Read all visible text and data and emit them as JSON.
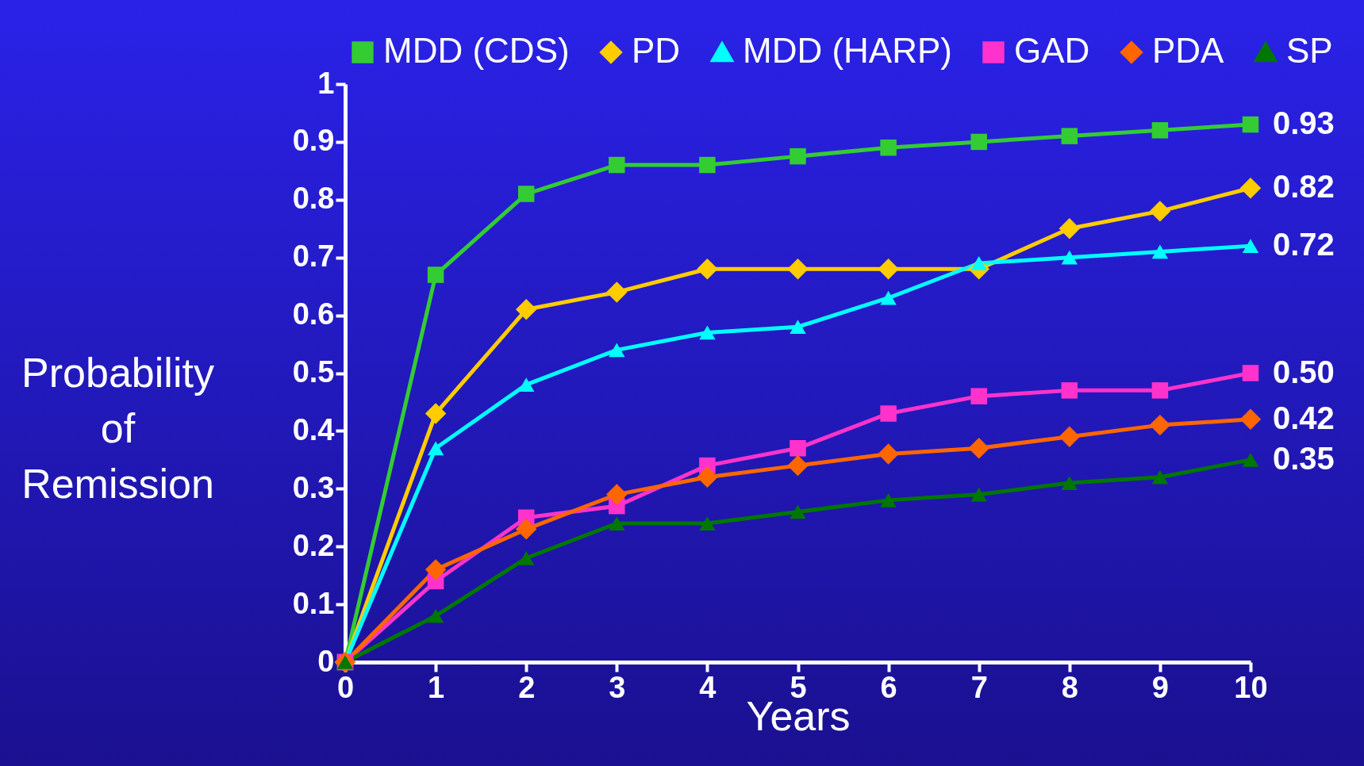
{
  "chart_data": {
    "type": "line",
    "xlabel": "Years",
    "ylabel": "Probability of Remission",
    "x": [
      0,
      1,
      2,
      3,
      4,
      5,
      6,
      7,
      8,
      9,
      10
    ],
    "xlim": [
      0,
      10
    ],
    "xticks": [
      0,
      1,
      2,
      3,
      4,
      5,
      6,
      7,
      8,
      9,
      10
    ],
    "ylim": [
      0,
      1
    ],
    "yticks": [
      0,
      0.1,
      0.2,
      0.3,
      0.4,
      0.5,
      0.6,
      0.7,
      0.8,
      0.9,
      1
    ],
    "legend": "top",
    "grid": false,
    "series": [
      {
        "name": "MDD (CDS)",
        "color": "#33cc33",
        "marker": "square",
        "values": [
          0,
          0.67,
          0.81,
          0.86,
          0.86,
          0.875,
          0.89,
          0.9,
          0.91,
          0.92,
          0.93
        ],
        "value_labels": [
          null,
          null,
          null,
          null,
          null,
          null,
          null,
          null,
          null,
          null,
          "0.93"
        ]
      },
      {
        "name": "PD",
        "color": "#ffcc00",
        "marker": "diamond",
        "values": [
          0,
          0.43,
          0.61,
          0.64,
          0.68,
          0.68,
          0.68,
          0.68,
          0.75,
          0.78,
          0.82
        ],
        "value_labels": [
          null,
          null,
          null,
          null,
          null,
          null,
          null,
          null,
          null,
          null,
          "0.82"
        ]
      },
      {
        "name": "MDD (HARP)",
        "color": "#00ffff",
        "marker": "triangle",
        "values": [
          0,
          0.37,
          0.48,
          0.54,
          0.57,
          0.58,
          0.63,
          0.69,
          0.7,
          0.71,
          0.72
        ],
        "value_labels": [
          null,
          null,
          null,
          null,
          null,
          null,
          null,
          null,
          null,
          null,
          "0.72"
        ]
      },
      {
        "name": "GAD",
        "color": "#ff33cc",
        "marker": "square",
        "values": [
          0,
          0.14,
          0.25,
          0.27,
          0.34,
          0.37,
          0.43,
          0.46,
          0.47,
          0.47,
          0.5
        ],
        "value_labels": [
          null,
          null,
          null,
          null,
          null,
          null,
          null,
          null,
          null,
          null,
          "0.50"
        ]
      },
      {
        "name": "PDA",
        "color": "#ff6600",
        "marker": "diamond",
        "values": [
          0,
          0.16,
          0.23,
          0.29,
          0.32,
          0.34,
          0.36,
          0.37,
          0.39,
          0.41,
          0.42
        ],
        "value_labels": [
          null,
          null,
          null,
          null,
          null,
          null,
          null,
          null,
          null,
          null,
          "0.42"
        ]
      },
      {
        "name": "SP",
        "color": "#007700",
        "marker": "triangle",
        "values": [
          0,
          0.08,
          0.18,
          0.24,
          0.24,
          0.26,
          0.28,
          0.29,
          0.31,
          0.32,
          0.35
        ],
        "value_labels": [
          null,
          null,
          null,
          null,
          null,
          null,
          null,
          null,
          null,
          null,
          "0.35"
        ]
      }
    ]
  }
}
